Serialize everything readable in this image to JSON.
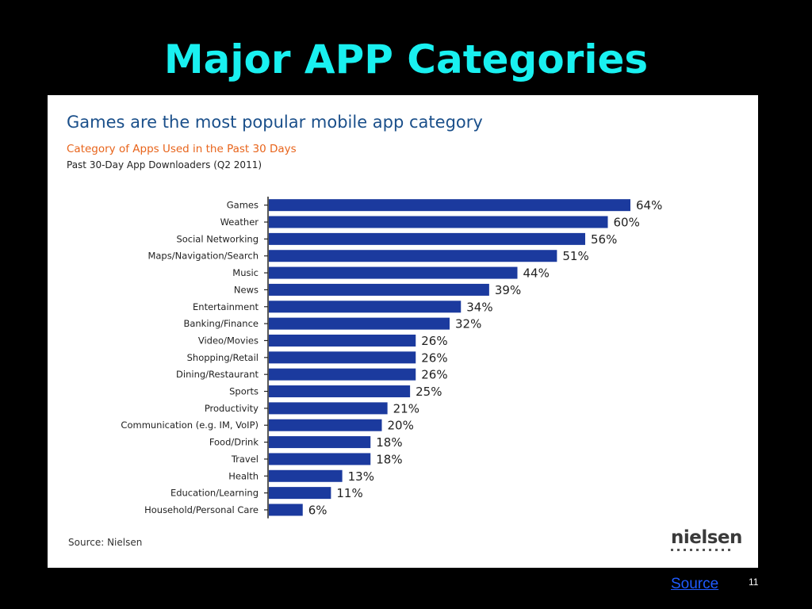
{
  "slide": {
    "title": "Major APP Categories",
    "source_link": "Source",
    "page_number": "11"
  },
  "colors": {
    "background": "#000000",
    "title": "#19F0F0",
    "bar": "#1B3A9E",
    "chart_title": "#1A4F8A",
    "chart_subtitle": "#E8641B",
    "link": "#1F5BFF"
  },
  "chart_data": {
    "type": "bar",
    "orientation": "horizontal",
    "title": "Games are the most popular mobile app category",
    "subtitle": "Category of Apps Used in the Past 30 Days",
    "subtitle2": "Past 30-Day App Downloaders  (Q2 2011)",
    "categories": [
      "Games",
      "Weather",
      "Social Networking",
      "Maps/Navigation/Search",
      "Music",
      "News",
      "Entertainment",
      "Banking/Finance",
      "Video/Movies",
      "Shopping/Retail",
      "Dining/Restaurant",
      "Sports",
      "Productivity",
      "Communication (e.g. IM, VoIP)",
      "Food/Drink",
      "Travel",
      "Health",
      "Education/Learning",
      "Household/Personal Care"
    ],
    "values": [
      64,
      60,
      56,
      51,
      44,
      39,
      34,
      32,
      26,
      26,
      26,
      25,
      21,
      20,
      18,
      18,
      13,
      11,
      6
    ],
    "value_labels": [
      "64%",
      "60%",
      "56%",
      "51%",
      "44%",
      "39%",
      "34%",
      "32%",
      "26%",
      "26%",
      "26%",
      "25%",
      "21%",
      "20%",
      "18%",
      "18%",
      "13%",
      "11%",
      "6%"
    ],
    "xlim": [
      0,
      64
    ],
    "grid": false,
    "legend": "none",
    "source_note": "Source: Nielsen",
    "logo": "nielsen"
  }
}
